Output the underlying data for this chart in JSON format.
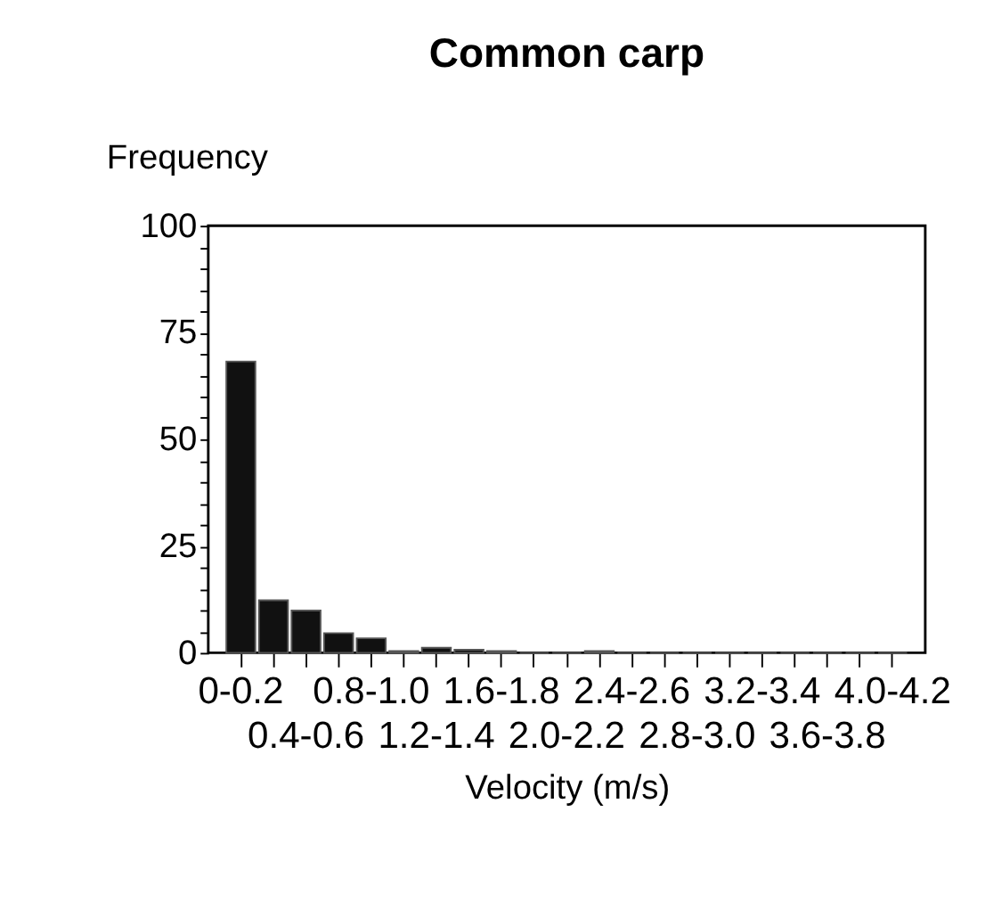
{
  "chart_data": {
    "type": "bar",
    "title": "Common carp",
    "xlabel": "Velocity (m/s)",
    "ylabel": "Frequency",
    "categories": [
      "0-0.2",
      null,
      "0.4-0.6",
      null,
      "0.8-1.0",
      null,
      "1.2-1.4",
      null,
      "1.6-1.8",
      null,
      "2.0-2.2",
      null,
      "2.4-2.6",
      null,
      "2.8-3.0",
      null,
      "3.2-3.4",
      null,
      "3.6-3.8",
      null,
      "4.0-4.2"
    ],
    "values": [
      68.2,
      12.3,
      9.9,
      4.6,
      3.4,
      0.4,
      1.2,
      0.7,
      0.4,
      0,
      0,
      0.4,
      0,
      0,
      0,
      0,
      0,
      0,
      0,
      0,
      0
    ],
    "color": "#111111",
    "ylim": [
      0,
      100
    ],
    "yticks": [
      0,
      {
        "value": 5,
        "label": null
      },
      {
        "value": 10,
        "label": null
      },
      {
        "value": 15,
        "label": null
      },
      {
        "value": 20,
        "label": null
      },
      25,
      {
        "value": 30,
        "label": null
      },
      {
        "value": 35,
        "label": null
      },
      {
        "value": 40,
        "label": null
      },
      {
        "value": 45,
        "label": null
      },
      50,
      {
        "value": 55,
        "label": null
      },
      {
        "value": 60,
        "label": null
      },
      {
        "value": 65,
        "label": null
      },
      {
        "value": 70,
        "label": null
      },
      75,
      {
        "value": 80,
        "label": null
      },
      {
        "value": 85,
        "label": null
      },
      {
        "value": 90,
        "label": null
      },
      {
        "value": 95,
        "label": null
      },
      100
    ],
    "grid": false
  }
}
